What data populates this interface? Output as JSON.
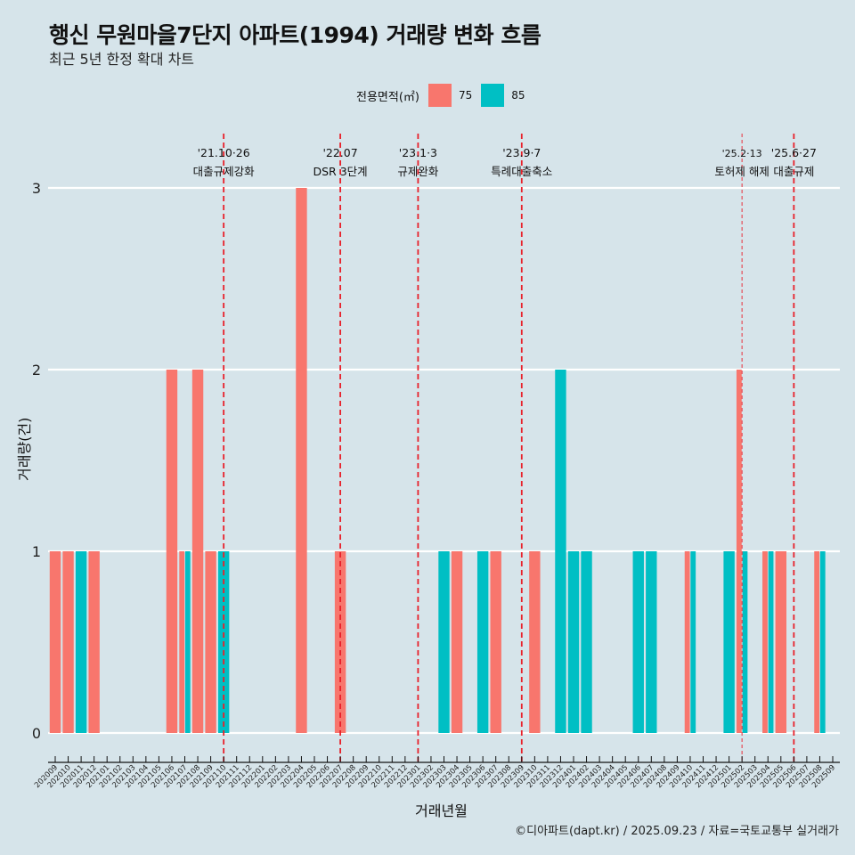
{
  "header": {
    "title": "행신 무원마을7단지 아파트(1994) 거래량 변화 흐름",
    "subtitle": "최근 5년 한정 확대 차트"
  },
  "footer": {
    "credit": "©디아파트(dapt.kr) / 2025.09.23 / 자료=국토교통부 실거래가"
  },
  "chart_data": {
    "type": "bar",
    "title": "행신 무원마을7단지 아파트(1994) 거래량 변화 흐름",
    "subtitle": "최근 5년 한정 확대 차트",
    "xlabel": "거래년월",
    "ylabel": "거래량(건)",
    "ylim": [
      0,
      3
    ],
    "yticks": [
      0,
      1,
      2,
      3
    ],
    "grid": true,
    "legend": {
      "title": "전용면적(㎡)",
      "placement": "top",
      "entries": [
        {
          "name": "75",
          "color": "#f8766d"
        },
        {
          "name": "85",
          "color": "#00bfc4"
        }
      ]
    },
    "categories": [
      "202009",
      "202010",
      "202011",
      "202012",
      "202101",
      "202102",
      "202103",
      "202104",
      "202105",
      "202106",
      "202107",
      "202108",
      "202109",
      "202110",
      "202111",
      "202112",
      "202201",
      "202202",
      "202203",
      "202204",
      "202205",
      "202206",
      "202207",
      "202208",
      "202209",
      "202210",
      "202211",
      "202212",
      "202301",
      "202302",
      "202303",
      "202304",
      "202305",
      "202306",
      "202307",
      "202308",
      "202309",
      "202310",
      "202311",
      "202312",
      "202401",
      "202402",
      "202403",
      "202404",
      "202405",
      "202406",
      "202407",
      "202408",
      "202409",
      "202410",
      "202411",
      "202412",
      "202501",
      "202502",
      "202503",
      "202504",
      "202505",
      "202506",
      "202507",
      "202508",
      "202509"
    ],
    "series": [
      {
        "name": "75",
        "color": "#f8766d",
        "values": {
          "202009": 1,
          "202010": 1,
          "202012": 1,
          "202106": 2,
          "202107": 1,
          "202108": 2,
          "202109": 1,
          "202204": 3,
          "202207": 1,
          "202304": 1,
          "202307": 1,
          "202310": 1,
          "202410": 1,
          "202502": 2,
          "202504": 1,
          "202505": 1,
          "202508": 1
        }
      },
      {
        "name": "85",
        "color": "#00bfc4",
        "values": {
          "202011": 1,
          "202107": 1,
          "202110": 1,
          "202303": 1,
          "202306": 1,
          "202312": 2,
          "202401": 1,
          "202402": 1,
          "202406": 1,
          "202407": 1,
          "202410": 1,
          "202501": 1,
          "202502": 1,
          "202504": 1,
          "202508": 1
        }
      }
    ],
    "annotations": [
      {
        "month": "202110",
        "date": "'21.10·26",
        "label": "대출규제강화",
        "style": "thick"
      },
      {
        "month": "202207",
        "date": "'22.07",
        "label": "DSR 3단계",
        "style": "thick"
      },
      {
        "month": "202301",
        "date": "'23.1·3",
        "label": "규제완화",
        "style": "thick"
      },
      {
        "month": "202309",
        "date": "'23.9·7",
        "label": "특례대출축소",
        "style": "thick"
      },
      {
        "month": "202502",
        "date": "'25.2·13",
        "label": "토허제 해제",
        "style": "thin"
      },
      {
        "month": "202506",
        "date": "'25.6·27",
        "label": "대출규제",
        "style": "thick"
      }
    ]
  }
}
